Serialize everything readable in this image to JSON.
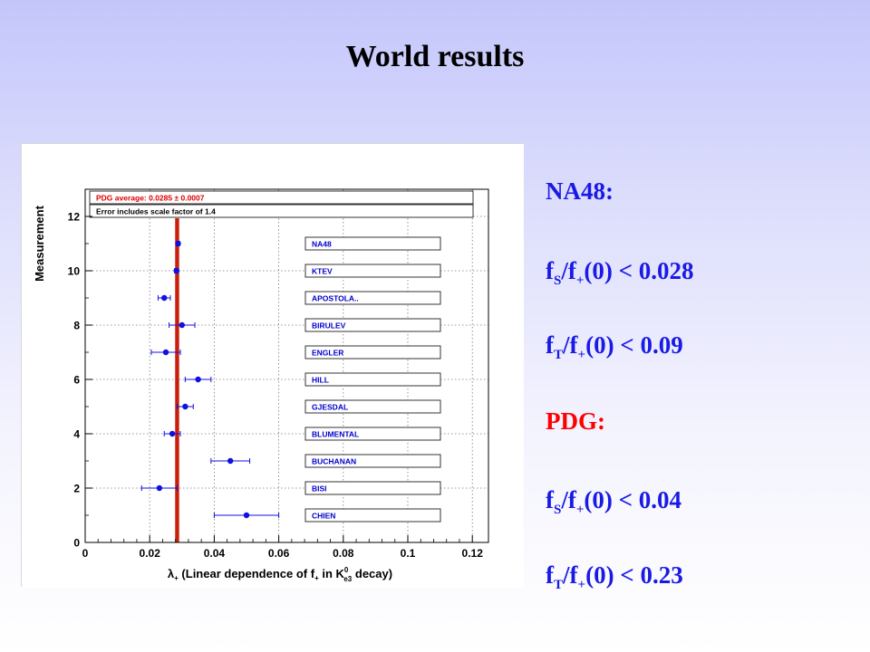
{
  "slide": {
    "title": "World results"
  },
  "notes": {
    "na48_heading": "NA48:",
    "na48_fs": {
      "base": "f",
      "sub1": "S",
      "mid": "/f",
      "sub2": "+",
      "tail": "(0) < 0.028"
    },
    "na48_ft": {
      "base": "f",
      "sub1": "T",
      "mid": "/f",
      "sub2": "+",
      "tail": "(0) < 0.09"
    },
    "pdg_heading": "PDG:",
    "pdg_fs": {
      "base": "f",
      "sub1": "S",
      "mid": "/f",
      "sub2": "+",
      "tail": "(0) < 0.04"
    },
    "pdg_ft": {
      "base": "f",
      "sub1": "T",
      "mid": "/f",
      "sub2": "+",
      "tail": "(0) < 0.23"
    }
  },
  "colors": {
    "note_blue": "#1a1ae6",
    "note_red": "#ff0000",
    "marker": "#1010e0",
    "average_line": "#c81e0a",
    "grid": "#7a7a7a"
  },
  "chart_data": {
    "type": "scatter",
    "orientation": "horizontal-error-bars",
    "xlim": [
      0,
      0.125
    ],
    "ylim": [
      0,
      13
    ],
    "x_ticks": [
      0,
      0.02,
      0.04,
      0.06,
      0.08,
      0.1,
      0.12
    ],
    "x_tick_labels": [
      "0",
      "0.02",
      "0.04",
      "0.06",
      "0.08",
      "0.1",
      "0.12"
    ],
    "y_ticks": [
      0,
      2,
      4,
      6,
      8,
      10,
      12
    ],
    "y_tick_labels": [
      "0",
      "2",
      "4",
      "6",
      "8",
      "10",
      "12"
    ],
    "ylabel": "Measurement",
    "xlabel": {
      "pre": "λ",
      "pre_sub": "+",
      "mid": " (Linear dependence of f",
      "mid_sub": "+",
      "post1": " in K",
      "post1_sup": "0",
      "post1_sub": "e3",
      "post2": " decay)"
    },
    "grid": true,
    "average": {
      "value": 0.0285,
      "label": "PDG average: 0.0285 ± 0.0007"
    },
    "scale_note": "Error includes scale factor of 1.4",
    "points": [
      {
        "label": "NA48",
        "y": 11,
        "value": 0.0288,
        "err": 0.0005
      },
      {
        "label": "KTEV",
        "y": 10,
        "value": 0.0283,
        "err": 0.0006
      },
      {
        "label": "APOSTOLA..",
        "y": 9,
        "value": 0.0245,
        "err": 0.0019
      },
      {
        "label": "BIRULEV",
        "y": 8,
        "value": 0.03,
        "err": 0.004
      },
      {
        "label": "ENGLER",
        "y": 7,
        "value": 0.025,
        "err": 0.0045
      },
      {
        "label": "HILL",
        "y": 6,
        "value": 0.035,
        "err": 0.004
      },
      {
        "label": "GJESDAL",
        "y": 5,
        "value": 0.031,
        "err": 0.0025
      },
      {
        "label": "BLUMENTAL",
        "y": 4,
        "value": 0.027,
        "err": 0.0025
      },
      {
        "label": "BUCHANAN",
        "y": 3,
        "value": 0.045,
        "err": 0.006
      },
      {
        "label": "BISI",
        "y": 2,
        "value": 0.023,
        "err": 0.0055
      },
      {
        "label": "CHIEN",
        "y": 1,
        "value": 0.05,
        "err": 0.01
      }
    ]
  }
}
